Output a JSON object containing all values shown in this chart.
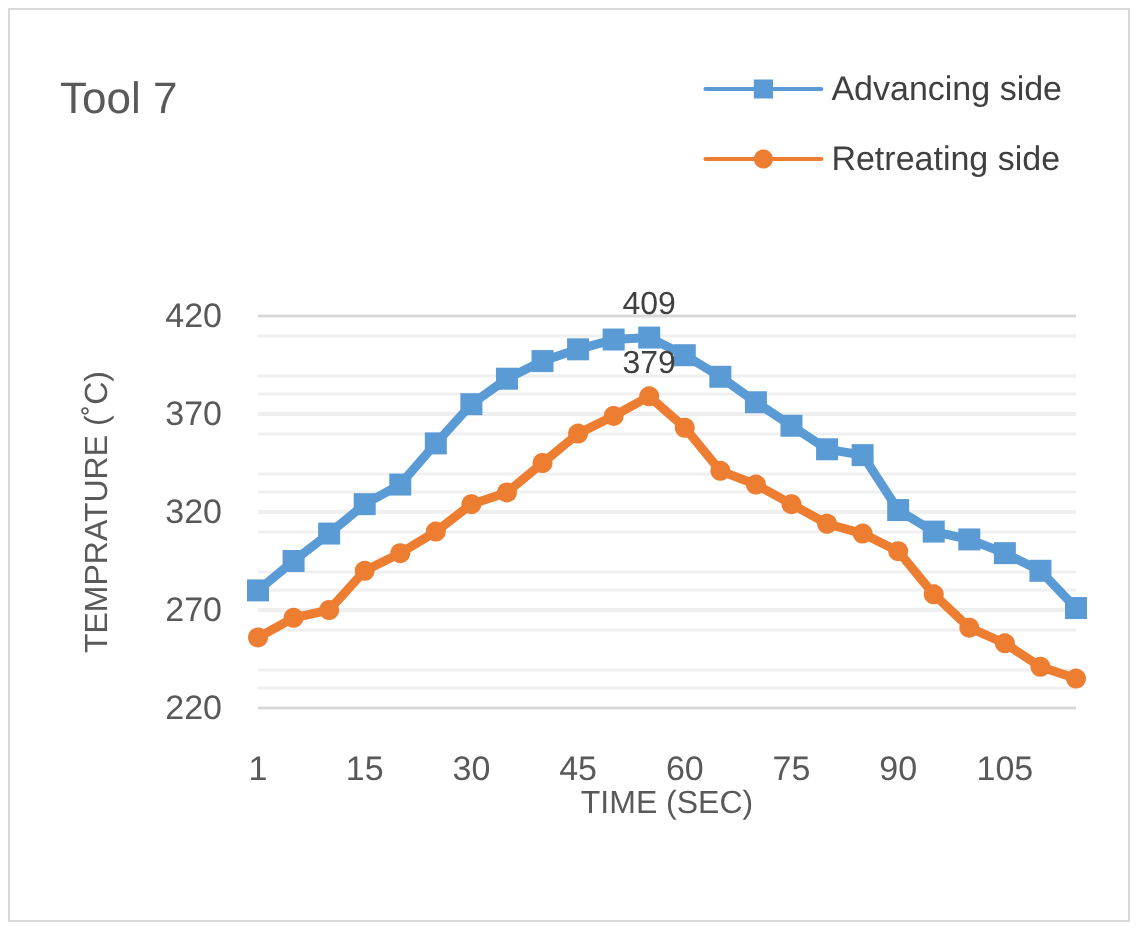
{
  "chart_data": {
    "type": "line",
    "title": "Tool 7",
    "xlabel": "TIME (SEC)",
    "ylabel": "TEMPRATURE (˚C)",
    "categories": [
      "1",
      null,
      null,
      "15",
      null,
      null,
      "30",
      null,
      null,
      "45",
      null,
      null,
      "60",
      null,
      null,
      "75",
      null,
      null,
      "90",
      null,
      null,
      "105",
      null,
      null
    ],
    "series": [
      {
        "name": "Advancing side",
        "color": "#5b9bd5",
        "marker": "square",
        "values": [
          280,
          295,
          309,
          324,
          334,
          355,
          375,
          388,
          397,
          403,
          408,
          409,
          400,
          389,
          376,
          364,
          352,
          349,
          321,
          310,
          306,
          299,
          290,
          271
        ],
        "value_labels": [
          null,
          null,
          null,
          null,
          null,
          null,
          null,
          null,
          null,
          null,
          null,
          "409",
          null,
          null,
          null,
          null,
          null,
          null,
          null,
          null,
          null,
          null,
          null,
          null
        ]
      },
      {
        "name": "Retreating side",
        "color": "#ed7d31",
        "marker": "circle",
        "values": [
          256,
          266,
          270,
          290,
          299,
          310,
          324,
          330,
          345,
          360,
          369,
          379,
          363,
          341,
          334,
          324,
          314,
          309,
          300,
          278,
          261,
          253,
          241,
          235
        ],
        "value_labels": [
          null,
          null,
          null,
          null,
          null,
          null,
          null,
          null,
          null,
          null,
          null,
          "379",
          null,
          null,
          null,
          null,
          null,
          null,
          null,
          null,
          null,
          null,
          null,
          null
        ]
      }
    ],
    "ylim": [
      220,
      420
    ],
    "yticks": [
      220,
      270,
      320,
      370,
      420
    ],
    "grid": "y",
    "legend": "top right",
    "line_style": "solid"
  }
}
